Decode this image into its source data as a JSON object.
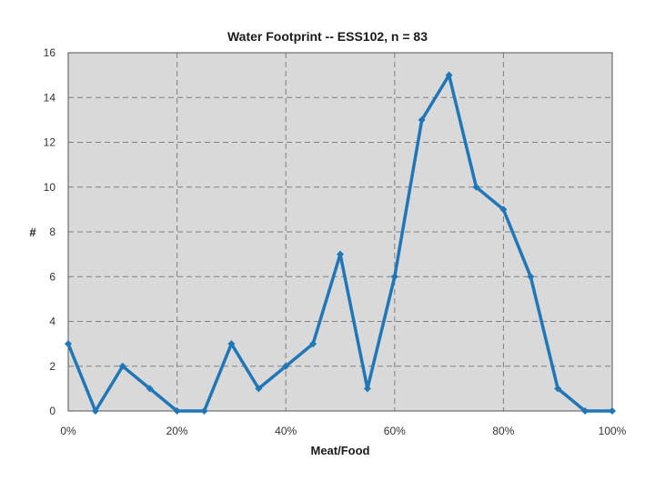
{
  "colors": {
    "series": "#1f77b8",
    "plot_background": "#d9d9d9",
    "grid": "#7f7f7f",
    "axis": "#555555"
  },
  "chart_data": {
    "type": "line",
    "title": "Water Footprint -- ESS102, n = 83",
    "xlabel": "Meat/Food",
    "ylabel": "#",
    "xlim": [
      0,
      100
    ],
    "ylim": [
      0,
      16
    ],
    "grid": true,
    "x_ticks": [
      "0%",
      "20%",
      "40%",
      "60%",
      "80%",
      "100%"
    ],
    "y_ticks": [
      "0",
      "2",
      "4",
      "6",
      "8",
      "10",
      "12",
      "14",
      "16"
    ],
    "marker": "diamond",
    "series": [
      {
        "x": [
          0,
          5,
          10,
          15,
          20,
          25,
          30,
          35,
          40,
          45,
          50,
          55,
          60,
          65,
          70,
          75,
          80,
          85,
          90,
          95,
          100
        ],
        "values": [
          3,
          0,
          2,
          1,
          0,
          0,
          3,
          1,
          2,
          3,
          7,
          1,
          6,
          13,
          15,
          10,
          9,
          6,
          1,
          0,
          0
        ]
      }
    ]
  }
}
